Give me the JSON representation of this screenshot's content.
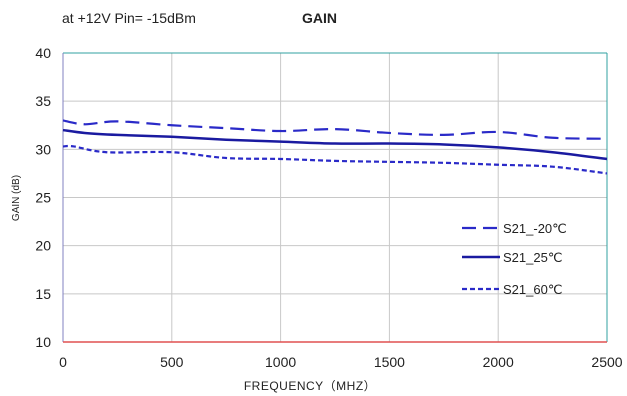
{
  "header": {
    "condition": "at +12V Pin= -15dBm"
  },
  "chart_data": {
    "type": "line",
    "title": "GAIN",
    "xlabel": "FREQUENCY（MHZ）",
    "ylabel": "GAIN (dB)",
    "xlim": [
      0,
      2500
    ],
    "ylim": [
      10,
      40
    ],
    "xticks": [
      0,
      500,
      1000,
      1500,
      2000,
      2500
    ],
    "yticks": [
      10,
      15,
      20,
      25,
      30,
      35,
      40
    ],
    "grid": true,
    "legend_position": "lower-right",
    "series": [
      {
        "name": "S21_-20℃",
        "style": "dashed",
        "color": "#2a2ac8",
        "x": [
          0,
          100,
          250,
          500,
          750,
          1000,
          1250,
          1500,
          1750,
          2000,
          2250,
          2500
        ],
        "y": [
          33.0,
          32.6,
          32.9,
          32.5,
          32.2,
          31.9,
          32.1,
          31.7,
          31.5,
          31.8,
          31.2,
          31.1
        ]
      },
      {
        "name": "S21_25℃",
        "style": "solid",
        "color": "#1a1aa0",
        "x": [
          0,
          100,
          250,
          500,
          750,
          1000,
          1250,
          1500,
          1750,
          2000,
          2250,
          2500
        ],
        "y": [
          32.0,
          31.7,
          31.5,
          31.3,
          31.0,
          30.8,
          30.6,
          30.6,
          30.5,
          30.2,
          29.7,
          29.0
        ]
      },
      {
        "name": "S21_60℃",
        "style": "dotted",
        "color": "#2a2ac8",
        "x": [
          0,
          50,
          200,
          500,
          750,
          1000,
          1250,
          1500,
          1750,
          2000,
          2250,
          2500
        ],
        "y": [
          30.3,
          30.3,
          29.7,
          29.7,
          29.1,
          29.0,
          28.8,
          28.7,
          28.6,
          28.4,
          28.2,
          27.5
        ]
      }
    ],
    "colors": {
      "grid": "#c8c8c8",
      "axis_bottom": "#e05050",
      "axis_top": "#30a0a0",
      "axis_right": "#30a0a0",
      "axis_left": "#8080c0"
    }
  }
}
